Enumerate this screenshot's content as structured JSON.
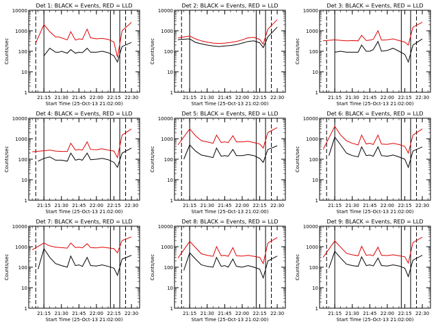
{
  "figure": {
    "colors": {
      "events": "#000000",
      "lld": "#e00000",
      "axes": "#000000",
      "background": "#ffffff"
    },
    "xticks": [
      "21:15",
      "21:30",
      "21:45",
      "22:00",
      "22:15",
      "22:30"
    ],
    "yticks": [
      "1",
      "10",
      "100",
      "1000",
      "10000"
    ],
    "xlabel": "Start Time (25-Oct-13 21:02:00)",
    "ylabel": "Counts/sec"
  },
  "chart_data": [
    {
      "type": "line",
      "title": "Det 1: BLACK = Events, RED = LLD",
      "yscale": "log",
      "ylim": [
        1,
        10000
      ],
      "x_ticks": [
        "21:15",
        "21:30",
        "21:45",
        "22:00",
        "22:15",
        "22:30"
      ],
      "solid_markers": [
        "21:15",
        "22:12",
        "22:20"
      ],
      "dashed_markers": [
        "21:08",
        "22:25"
      ],
      "series": [
        {
          "color": "#000000",
          "x": [
            "21:15",
            "21:20",
            "21:25",
            "21:28",
            "21:30",
            "21:35",
            "21:38",
            "21:42",
            "21:45",
            "21:48",
            "21:52",
            "21:55",
            "22:00",
            "22:05",
            "22:10",
            "22:15",
            "22:18",
            "22:22",
            "22:30"
          ],
          "values": [
            60,
            140,
            90,
            90,
            100,
            80,
            120,
            80,
            90,
            85,
            140,
            90,
            90,
            100,
            85,
            60,
            30,
            170,
            270
          ]
        },
        {
          "color": "#e00000",
          "x": [
            "21:08",
            "21:15",
            "21:20",
            "21:25",
            "21:28",
            "21:30",
            "21:35",
            "21:38",
            "21:42",
            "21:45",
            "21:48",
            "21:52",
            "21:55",
            "22:00",
            "22:05",
            "22:10",
            "22:15",
            "22:18",
            "22:22",
            "22:30"
          ],
          "values": [
            250,
            2000,
            900,
            500,
            500,
            450,
            360,
            900,
            350,
            400,
            380,
            1200,
            450,
            400,
            420,
            380,
            280,
            50,
            1000,
            2600
          ]
        }
      ]
    },
    {
      "type": "line",
      "title": "Det 2: BLACK = Events, RED = LLD",
      "yscale": "log",
      "ylim": [
        1,
        10000
      ],
      "x_ticks": [
        "21:15",
        "21:30",
        "21:45",
        "22:00",
        "22:15",
        "22:30"
      ],
      "solid_markers": [
        "21:15",
        "22:12",
        "22:20"
      ],
      "dashed_markers": [
        "21:08",
        "22:25"
      ],
      "series": [
        {
          "color": "#000000",
          "x": [
            "21:05",
            "21:15",
            "21:20",
            "21:25",
            "21:30",
            "21:35",
            "21:40",
            "21:45",
            "21:50",
            "21:55",
            "22:00",
            "22:05",
            "22:10",
            "22:15",
            "22:18",
            "22:22",
            "22:30"
          ],
          "values": [
            370,
            400,
            270,
            230,
            200,
            180,
            170,
            180,
            190,
            210,
            250,
            300,
            320,
            260,
            150,
            500,
            1500
          ]
        },
        {
          "color": "#e00000",
          "x": [
            "21:05",
            "21:15",
            "21:20",
            "21:25",
            "21:30",
            "21:35",
            "21:40",
            "21:45",
            "21:50",
            "21:55",
            "22:00",
            "22:05",
            "22:10",
            "22:15",
            "22:18",
            "22:22",
            "22:30"
          ],
          "values": [
            450,
            550,
            400,
            320,
            280,
            250,
            240,
            250,
            270,
            300,
            360,
            450,
            480,
            380,
            220,
            1200,
            3500
          ]
        }
      ]
    },
    {
      "type": "line",
      "title": "Det 3: BLACK = Events, RED = LLD",
      "yscale": "log",
      "ylim": [
        1,
        10000
      ],
      "x_ticks": [
        "21:15",
        "21:30",
        "21:45",
        "22:00",
        "22:15",
        "22:30"
      ],
      "solid_markers": [
        "21:15",
        "22:12",
        "22:20"
      ],
      "dashed_markers": [
        "21:08",
        "22:25"
      ],
      "series": [
        {
          "color": "#000000",
          "x": [
            "21:15",
            "21:20",
            "21:25",
            "21:30",
            "21:35",
            "21:38",
            "21:42",
            "21:45",
            "21:48",
            "21:52",
            "21:55",
            "22:00",
            "22:05",
            "22:10",
            "22:15",
            "22:18",
            "22:22",
            "22:30"
          ],
          "values": [
            90,
            100,
            90,
            90,
            90,
            200,
            100,
            100,
            120,
            300,
            100,
            110,
            140,
            100,
            70,
            30,
            200,
            400
          ]
        },
        {
          "color": "#e00000",
          "x": [
            "21:05",
            "21:15",
            "21:20",
            "21:25",
            "21:30",
            "21:35",
            "21:38",
            "21:42",
            "21:45",
            "21:48",
            "21:52",
            "21:55",
            "22:00",
            "22:05",
            "22:10",
            "22:15",
            "22:18",
            "22:22",
            "22:30"
          ],
          "values": [
            320,
            360,
            340,
            320,
            330,
            320,
            600,
            330,
            350,
            380,
            1000,
            350,
            360,
            400,
            330,
            280,
            200,
            1500,
            2600
          ]
        }
      ]
    },
    {
      "type": "line",
      "title": "Det 4: BLACK = Events, RED = LLD",
      "yscale": "log",
      "ylim": [
        1,
        10000
      ],
      "x_ticks": [
        "21:15",
        "21:30",
        "21:45",
        "22:00",
        "22:15",
        "22:30"
      ],
      "solid_markers": [
        "21:15",
        "22:12",
        "22:20"
      ],
      "dashed_markers": [
        "21:08",
        "22:25"
      ],
      "series": [
        {
          "color": "#000000",
          "x": [
            "21:10",
            "21:15",
            "21:20",
            "21:25",
            "21:30",
            "21:35",
            "21:38",
            "21:42",
            "21:45",
            "21:48",
            "21:52",
            "21:55",
            "22:00",
            "22:05",
            "22:10",
            "22:15",
            "22:18",
            "22:22",
            "22:30"
          ],
          "values": [
            80,
            110,
            130,
            90,
            90,
            80,
            200,
            90,
            100,
            90,
            200,
            95,
            100,
            110,
            95,
            70,
            40,
            200,
            350
          ]
        },
        {
          "color": "#e00000",
          "x": [
            "21:05",
            "21:15",
            "21:20",
            "21:25",
            "21:30",
            "21:35",
            "21:38",
            "21:42",
            "21:45",
            "21:48",
            "21:52",
            "21:55",
            "22:00",
            "22:05",
            "22:10",
            "22:15",
            "22:18",
            "22:22",
            "22:30"
          ],
          "values": [
            230,
            260,
            280,
            250,
            240,
            240,
            600,
            280,
            300,
            280,
            700,
            300,
            290,
            320,
            280,
            250,
            120,
            1500,
            3000
          ]
        }
      ]
    },
    {
      "type": "line",
      "title": "Det 5: BLACK = Events, RED = LLD",
      "yscale": "log",
      "ylim": [
        1,
        10000
      ],
      "x_ticks": [
        "21:15",
        "21:30",
        "21:45",
        "22:00",
        "22:15",
        "22:30"
      ],
      "solid_markers": [
        "21:15",
        "22:12",
        "22:20"
      ],
      "dashed_markers": [
        "21:08",
        "22:25"
      ],
      "series": [
        {
          "color": "#000000",
          "x": [
            "21:10",
            "21:15",
            "21:20",
            "21:25",
            "21:30",
            "21:35",
            "21:38",
            "21:42",
            "21:45",
            "21:48",
            "21:52",
            "21:55",
            "22:00",
            "22:05",
            "22:10",
            "22:15",
            "22:18",
            "22:22",
            "22:30"
          ],
          "values": [
            100,
            500,
            250,
            160,
            140,
            120,
            350,
            140,
            150,
            140,
            300,
            150,
            150,
            170,
            150,
            110,
            70,
            300,
            450
          ]
        },
        {
          "color": "#e00000",
          "x": [
            "21:05",
            "21:15",
            "21:20",
            "21:25",
            "21:30",
            "21:35",
            "21:38",
            "21:42",
            "21:45",
            "21:48",
            "21:52",
            "21:55",
            "22:00",
            "22:05",
            "22:10",
            "22:15",
            "22:18",
            "22:22",
            "22:30"
          ],
          "values": [
            500,
            3000,
            1400,
            800,
            700,
            600,
            1500,
            650,
            700,
            650,
            1400,
            700,
            700,
            750,
            650,
            550,
            350,
            2000,
            3500
          ]
        }
      ]
    },
    {
      "type": "line",
      "title": "Det 6: BLACK = Events, RED = LLD",
      "yscale": "log",
      "ylim": [
        1,
        10000
      ],
      "x_ticks": [
        "21:15",
        "21:30",
        "21:45",
        "22:00",
        "22:15",
        "22:30"
      ],
      "solid_markers": [
        "21:15",
        "22:12",
        "22:20"
      ],
      "dashed_markers": [
        "21:08",
        "22:25"
      ],
      "series": [
        {
          "color": "#000000",
          "x": [
            "21:10",
            "21:15",
            "21:20",
            "21:25",
            "21:30",
            "21:35",
            "21:38",
            "21:42",
            "21:45",
            "21:48",
            "21:52",
            "21:55",
            "22:00",
            "22:05",
            "22:10",
            "22:15",
            "22:18",
            "22:22",
            "22:30"
          ],
          "values": [
            150,
            1200,
            500,
            200,
            150,
            130,
            400,
            150,
            160,
            140,
            400,
            150,
            140,
            160,
            130,
            100,
            40,
            250,
            400
          ]
        },
        {
          "color": "#e00000",
          "x": [
            "21:05",
            "21:15",
            "21:20",
            "21:25",
            "21:30",
            "21:35",
            "21:38",
            "21:42",
            "21:45",
            "21:48",
            "21:52",
            "21:55",
            "22:00",
            "22:05",
            "22:10",
            "22:15",
            "22:18",
            "22:22",
            "22:30"
          ],
          "values": [
            300,
            4000,
            1500,
            800,
            600,
            500,
            1500,
            550,
            600,
            520,
            1500,
            550,
            530,
            600,
            520,
            420,
            200,
            1500,
            3000
          ]
        }
      ]
    },
    {
      "type": "line",
      "title": "Det 7: BLACK = Events, RED = LLD",
      "yscale": "log",
      "ylim": [
        1,
        10000
      ],
      "x_ticks": [
        "21:15",
        "21:30",
        "21:45",
        "22:00",
        "22:15",
        "22:30"
      ],
      "solid_markers": [
        "21:15",
        "22:12",
        "22:20"
      ],
      "dashed_markers": [
        "21:08",
        "22:25"
      ],
      "series": [
        {
          "color": "#000000",
          "x": [
            "21:10",
            "21:15",
            "21:20",
            "21:25",
            "21:30",
            "21:35",
            "21:38",
            "21:42",
            "21:45",
            "21:48",
            "21:52",
            "21:55",
            "22:00",
            "22:05",
            "22:10",
            "22:15",
            "22:18",
            "22:22",
            "22:30"
          ],
          "values": [
            80,
            800,
            300,
            150,
            120,
            100,
            350,
            120,
            130,
            110,
            300,
            120,
            115,
            130,
            110,
            90,
            40,
            250,
            380
          ]
        },
        {
          "color": "#e00000",
          "x": [
            "21:05",
            "21:15",
            "21:20",
            "21:25",
            "21:30",
            "21:35",
            "21:38",
            "21:42",
            "21:45",
            "21:48",
            "21:52",
            "21:55",
            "22:00",
            "22:05",
            "22:10",
            "22:15",
            "22:18",
            "22:22",
            "22:30"
          ],
          "values": [
            700,
            1500,
            1100,
            950,
            900,
            850,
            1500,
            900,
            950,
            880,
            1400,
            900,
            880,
            950,
            880,
            800,
            500,
            2000,
            3000
          ]
        }
      ]
    },
    {
      "type": "line",
      "title": "Det 8: BLACK = Events, RED = LLD",
      "yscale": "log",
      "ylim": [
        1,
        10000
      ],
      "x_ticks": [
        "21:15",
        "21:30",
        "21:45",
        "22:00",
        "22:15",
        "22:30"
      ],
      "solid_markers": [
        "21:15",
        "22:12",
        "22:20"
      ],
      "dashed_markers": [
        "21:08",
        "22:25"
      ],
      "series": [
        {
          "color": "#000000",
          "x": [
            "21:10",
            "21:15",
            "21:20",
            "21:25",
            "21:30",
            "21:35",
            "21:38",
            "21:42",
            "21:45",
            "21:48",
            "21:52",
            "21:55",
            "22:00",
            "22:05",
            "22:10",
            "22:15",
            "22:18",
            "22:22",
            "22:30"
          ],
          "values": [
            70,
            500,
            250,
            130,
            110,
            100,
            300,
            110,
            120,
            100,
            250,
            110,
            100,
            120,
            100,
            80,
            30,
            200,
            350
          ]
        },
        {
          "color": "#e00000",
          "x": [
            "21:05",
            "21:15",
            "21:20",
            "21:25",
            "21:30",
            "21:35",
            "21:38",
            "21:42",
            "21:45",
            "21:48",
            "21:52",
            "21:55",
            "22:00",
            "22:05",
            "22:10",
            "22:15",
            "22:18",
            "22:22",
            "22:30"
          ],
          "values": [
            280,
            1800,
            900,
            450,
            380,
            340,
            1000,
            360,
            380,
            340,
            900,
            360,
            350,
            380,
            340,
            300,
            150,
            1500,
            2800
          ]
        }
      ]
    },
    {
      "type": "line",
      "title": "Det 9: BLACK = Events, RED = LLD",
      "yscale": "log",
      "ylim": [
        1,
        10000
      ],
      "x_ticks": [
        "21:15",
        "21:30",
        "21:45",
        "22:00",
        "22:15",
        "22:30"
      ],
      "solid_markers": [
        "21:15",
        "22:12",
        "22:20"
      ],
      "dashed_markers": [
        "21:08",
        "22:25"
      ],
      "series": [
        {
          "color": "#000000",
          "x": [
            "21:10",
            "21:15",
            "21:20",
            "21:25",
            "21:30",
            "21:35",
            "21:38",
            "21:42",
            "21:45",
            "21:48",
            "21:52",
            "21:55",
            "22:00",
            "22:05",
            "22:10",
            "22:15",
            "22:18",
            "22:22",
            "22:30"
          ],
          "values": [
            90,
            600,
            280,
            140,
            120,
            110,
            320,
            120,
            130,
            115,
            280,
            120,
            115,
            130,
            115,
            90,
            35,
            220,
            380
          ]
        },
        {
          "color": "#e00000",
          "x": [
            "21:05",
            "21:15",
            "21:20",
            "21:25",
            "21:30",
            "21:35",
            "21:38",
            "21:42",
            "21:45",
            "21:48",
            "21:52",
            "21:55",
            "22:00",
            "22:05",
            "22:10",
            "22:15",
            "22:18",
            "22:22",
            "22:30"
          ],
          "values": [
            300,
            1900,
            950,
            480,
            400,
            360,
            1050,
            380,
            400,
            360,
            950,
            380,
            370,
            400,
            360,
            320,
            160,
            1600,
            2900
          ]
        }
      ]
    }
  ]
}
